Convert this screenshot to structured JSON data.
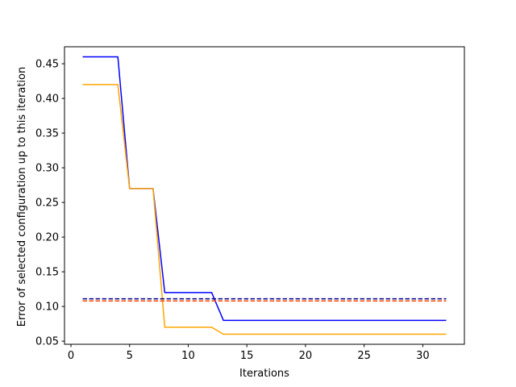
{
  "chart_data": {
    "type": "line",
    "title": "",
    "xlabel": "Iterations",
    "ylabel": "Error of selected configuration up to this iteration",
    "xlim": [
      -0.55,
      33.55
    ],
    "ylim": [
      0.0455,
      0.4745
    ],
    "xticks": [
      0,
      5,
      10,
      15,
      20,
      25,
      30
    ],
    "xtick_labels": [
      "0",
      "5",
      "10",
      "15",
      "20",
      "25",
      "30"
    ],
    "yticks": [
      0.05,
      0.1,
      0.15,
      0.2,
      0.25,
      0.3,
      0.35,
      0.4,
      0.45
    ],
    "ytick_labels": [
      "0.05",
      "0.10",
      "0.15",
      "0.20",
      "0.25",
      "0.30",
      "0.35",
      "0.40",
      "0.45"
    ],
    "grid": false,
    "legend": "none",
    "x": [
      1,
      2,
      3,
      4,
      5,
      6,
      7,
      8,
      9,
      10,
      11,
      12,
      13,
      14,
      15,
      16,
      17,
      18,
      19,
      20,
      21,
      22,
      23,
      24,
      25,
      26,
      27,
      28,
      29,
      30,
      31,
      32
    ],
    "series": [
      {
        "color": "#0000ff",
        "style": "solid",
        "values": [
          0.46,
          0.46,
          0.46,
          0.46,
          0.27,
          0.27,
          0.27,
          0.12,
          0.12,
          0.12,
          0.12,
          0.12,
          0.08,
          0.08,
          0.08,
          0.08,
          0.08,
          0.08,
          0.08,
          0.08,
          0.08,
          0.08,
          0.08,
          0.08,
          0.08,
          0.08,
          0.08,
          0.08,
          0.08,
          0.08,
          0.08,
          0.08
        ]
      },
      {
        "color": "#ffa500",
        "style": "solid",
        "values": [
          0.42,
          0.42,
          0.42,
          0.42,
          0.27,
          0.27,
          0.27,
          0.07,
          0.07,
          0.07,
          0.07,
          0.07,
          0.06,
          0.06,
          0.06,
          0.06,
          0.06,
          0.06,
          0.06,
          0.06,
          0.06,
          0.06,
          0.06,
          0.06,
          0.06,
          0.06,
          0.06,
          0.06,
          0.06,
          0.06,
          0.06,
          0.06
        ]
      },
      {
        "color": "#00008b",
        "style": "dashed",
        "values": [
          0.111,
          0.111,
          0.111,
          0.111,
          0.111,
          0.111,
          0.111,
          0.111,
          0.111,
          0.111,
          0.111,
          0.111,
          0.111,
          0.111,
          0.111,
          0.111,
          0.111,
          0.111,
          0.111,
          0.111,
          0.111,
          0.111,
          0.111,
          0.111,
          0.111,
          0.111,
          0.111,
          0.111,
          0.111,
          0.111,
          0.111,
          0.111
        ]
      },
      {
        "color": "#ff4500",
        "style": "dashed",
        "values": [
          0.108,
          0.108,
          0.108,
          0.108,
          0.108,
          0.108,
          0.108,
          0.108,
          0.108,
          0.108,
          0.108,
          0.108,
          0.108,
          0.108,
          0.108,
          0.108,
          0.108,
          0.108,
          0.108,
          0.108,
          0.108,
          0.108,
          0.108,
          0.108,
          0.108,
          0.108,
          0.108,
          0.108,
          0.108,
          0.108,
          0.108,
          0.108
        ]
      }
    ]
  }
}
